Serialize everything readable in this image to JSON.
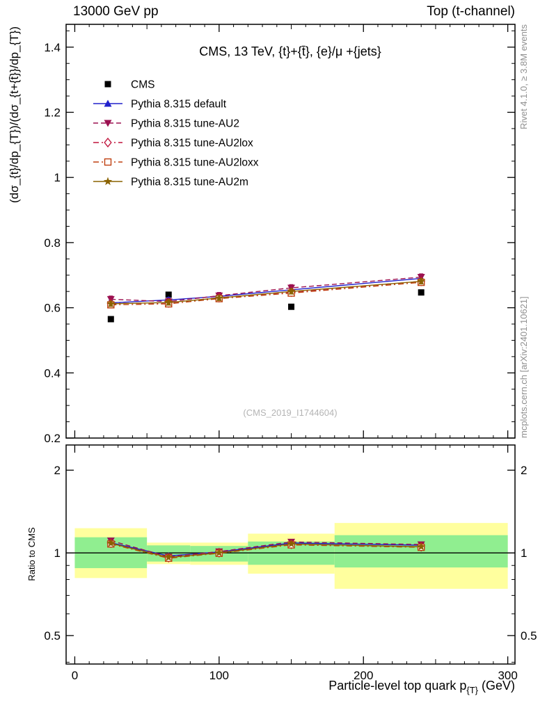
{
  "header": {
    "left": "13000 GeV pp",
    "right": "Top (t-channel)"
  },
  "titles": {
    "plot_title": "CMS, 13 TeV, {t}+{t̄}, {e}/μ +{jets}",
    "watermark": "(CMS_2019_I1744604)",
    "y_axis_main": "(dσ_{t}/dp_{T})/(dσ_{t+{t̄}}/dp_{T})",
    "y_axis_ratio": "Ratio to CMS",
    "x_axis_pre": "Particle-level top quark p",
    "x_axis_sub": "{T}",
    "x_axis_post": " (GeV)",
    "right_top": "Rivet 4.1.0, ≥ 3.8M events",
    "right_bottom": "mcplots.cern.ch [arXiv:2401.10621]"
  },
  "chart_data": {
    "type": "line",
    "title": "CMS, 13 TeV, {t}+{t̄}, {e}/μ +{jets}",
    "xlabel": "Particle-level top quark p_{T} (GeV)",
    "ylabel_main": "(dσ_{t}/dp_{T})/(dσ_{t+{t̄}}/dp_{T})",
    "ylabel_ratio": "Ratio to CMS",
    "x_range": [
      -6,
      305
    ],
    "x_ticks": [
      0,
      100,
      200,
      300
    ],
    "main": {
      "y_range": [
        0.2,
        1.47
      ],
      "y_ticks": [
        0.2,
        0.4,
        0.6,
        0.8,
        1,
        1.2,
        1.4
      ]
    },
    "ratio": {
      "y_scale": "log",
      "y_range": [
        0.394,
        2.47
      ],
      "y_ticks": [
        0.5,
        1,
        2
      ],
      "y_minor_ticks": [
        0.4,
        0.6,
        0.7,
        0.8,
        0.9
      ]
    },
    "x": [
      25,
      65,
      100,
      150,
      240
    ],
    "series": [
      {
        "name": "CMS",
        "color": "#000000",
        "marker": "square",
        "line": "none",
        "is_ref": true,
        "values": [
          0.565,
          0.64,
          0.63,
          0.603,
          0.647
        ]
      },
      {
        "name": "Pythia 8.315 default",
        "color": "#2020cc",
        "marker": "triangle-up",
        "line": "solid",
        "yerr": 0.008,
        "values": [
          0.615,
          0.624,
          0.635,
          0.655,
          0.69
        ]
      },
      {
        "name": "Pythia 8.315 tune-AU2",
        "color": "#9c1050",
        "marker": "triangle-down",
        "line": "dashed",
        "yerr": 0.01,
        "values": [
          0.626,
          0.619,
          0.637,
          0.661,
          0.694
        ]
      },
      {
        "name": "Pythia 8.315 tune-AU2lox",
        "color": "#c0143c",
        "marker": "diamond-open",
        "line": "dashdot",
        "yerr": 0.008,
        "values": [
          0.613,
          0.615,
          0.631,
          0.648,
          0.681
        ]
      },
      {
        "name": "Pythia 8.315 tune-AU2loxx",
        "color": "#bf3f0f",
        "marker": "square-open",
        "line": "dashdot",
        "yerr": 0.008,
        "values": [
          0.609,
          0.612,
          0.628,
          0.645,
          0.678
        ]
      },
      {
        "name": "Pythia 8.315 tune-AU2m",
        "color": "#8a6200",
        "marker": "star",
        "line": "solid",
        "yerr": 0.008,
        "values": [
          0.612,
          0.616,
          0.63,
          0.65,
          0.681
        ]
      }
    ],
    "ratio_bands": [
      {
        "x": [
          0,
          50
        ],
        "yellow": [
          0.81,
          1.23
        ],
        "green": [
          0.88,
          1.14
        ]
      },
      {
        "x": [
          50,
          80
        ],
        "yellow": [
          0.91,
          1.09
        ],
        "green": [
          0.93,
          1.065
        ]
      },
      {
        "x": [
          80,
          120
        ],
        "yellow": [
          0.905,
          1.09
        ],
        "green": [
          0.93,
          1.06
        ]
      },
      {
        "x": [
          120,
          180
        ],
        "yellow": [
          0.84,
          1.175
        ],
        "green": [
          0.905,
          1.1
        ]
      },
      {
        "x": [
          180,
          300
        ],
        "yellow": [
          0.74,
          1.285
        ],
        "green": [
          0.885,
          1.16
        ]
      }
    ],
    "band_colors": {
      "outer": "#ffff9e",
      "inner": "#90ee90"
    },
    "ref_line": 1
  }
}
